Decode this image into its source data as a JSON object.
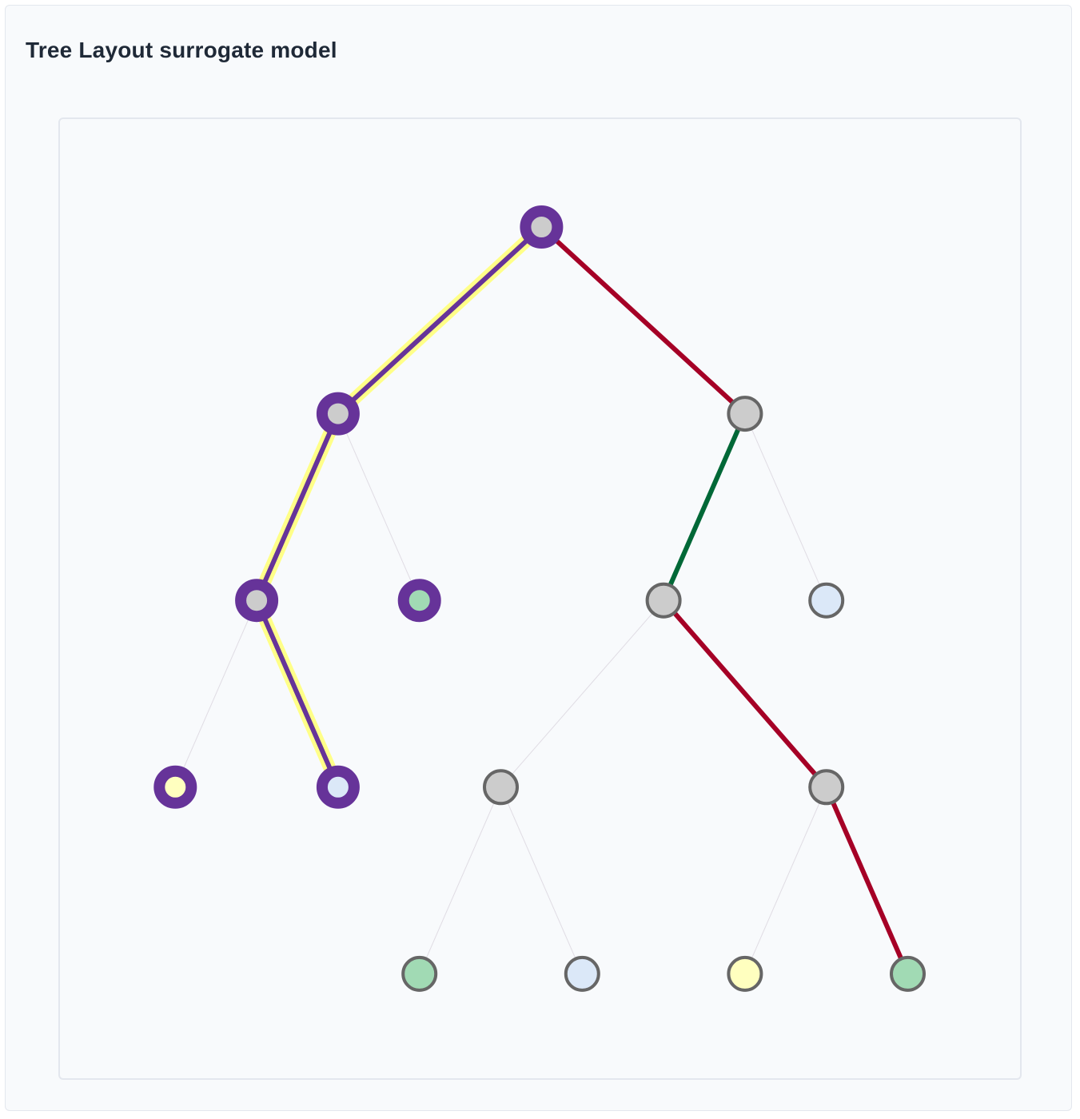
{
  "header": {
    "title": "Tree Layout surrogate model"
  },
  "colors": {
    "highlight_node": "#663399",
    "highlight_path": "#ffff88",
    "default_node_stroke": "#666666",
    "internal_node_fill": "#cccccc",
    "edge_red": "#a50026",
    "edge_green": "#006837",
    "edge_faint": "#d9d4dd",
    "leaf_yellow": "#ffffbf",
    "leaf_green": "#a1dab4",
    "leaf_blue": "#dbe8f8"
  },
  "tree": {
    "nodes": [
      {
        "id": "n0",
        "depth": 0,
        "slot": 5,
        "kind": "internal",
        "highlighted": true
      },
      {
        "id": "n1",
        "depth": 1,
        "slot": 2.5,
        "kind": "internal",
        "highlighted": true
      },
      {
        "id": "n2",
        "depth": 1,
        "slot": 7.5,
        "kind": "internal",
        "highlighted": false
      },
      {
        "id": "n3",
        "depth": 2,
        "slot": 1.5,
        "kind": "internal",
        "highlighted": true
      },
      {
        "id": "n4",
        "depth": 2,
        "slot": 3.5,
        "kind": "leaf",
        "leaf_class": "green",
        "highlighted": true
      },
      {
        "id": "n5",
        "depth": 2,
        "slot": 6.5,
        "kind": "internal",
        "highlighted": false
      },
      {
        "id": "n6",
        "depth": 2,
        "slot": 8.5,
        "kind": "leaf",
        "leaf_class": "blue",
        "highlighted": false
      },
      {
        "id": "n7",
        "depth": 3,
        "slot": 0.5,
        "kind": "leaf",
        "leaf_class": "yellow",
        "highlighted": true
      },
      {
        "id": "n8",
        "depth": 3,
        "slot": 2.5,
        "kind": "leaf",
        "leaf_class": "blue",
        "highlighted": true
      },
      {
        "id": "n9",
        "depth": 3,
        "slot": 4.5,
        "kind": "internal",
        "highlighted": false
      },
      {
        "id": "n10",
        "depth": 3,
        "slot": 8.5,
        "kind": "internal",
        "highlighted": false
      },
      {
        "id": "n11",
        "depth": 4,
        "slot": 3.5,
        "kind": "leaf",
        "leaf_class": "green",
        "highlighted": false
      },
      {
        "id": "n12",
        "depth": 4,
        "slot": 5.5,
        "kind": "leaf",
        "leaf_class": "blue",
        "highlighted": false
      },
      {
        "id": "n13",
        "depth": 4,
        "slot": 7.5,
        "kind": "leaf",
        "leaf_class": "yellow",
        "highlighted": false
      },
      {
        "id": "n14",
        "depth": 4,
        "slot": 9.5,
        "kind": "leaf",
        "leaf_class": "green",
        "highlighted": false
      }
    ],
    "edges": [
      {
        "from": "n0",
        "to": "n1",
        "style": "path"
      },
      {
        "from": "n0",
        "to": "n2",
        "style": "red"
      },
      {
        "from": "n1",
        "to": "n3",
        "style": "path"
      },
      {
        "from": "n1",
        "to": "n4",
        "style": "faint"
      },
      {
        "from": "n3",
        "to": "n7",
        "style": "faint"
      },
      {
        "from": "n3",
        "to": "n8",
        "style": "path"
      },
      {
        "from": "n2",
        "to": "n5",
        "style": "green"
      },
      {
        "from": "n2",
        "to": "n6",
        "style": "faint"
      },
      {
        "from": "n5",
        "to": "n9",
        "style": "faint"
      },
      {
        "from": "n5",
        "to": "n10",
        "style": "red"
      },
      {
        "from": "n9",
        "to": "n11",
        "style": "faint"
      },
      {
        "from": "n9",
        "to": "n12",
        "style": "faint"
      },
      {
        "from": "n10",
        "to": "n13",
        "style": "faint"
      },
      {
        "from": "n10",
        "to": "n14",
        "style": "red"
      }
    ]
  }
}
